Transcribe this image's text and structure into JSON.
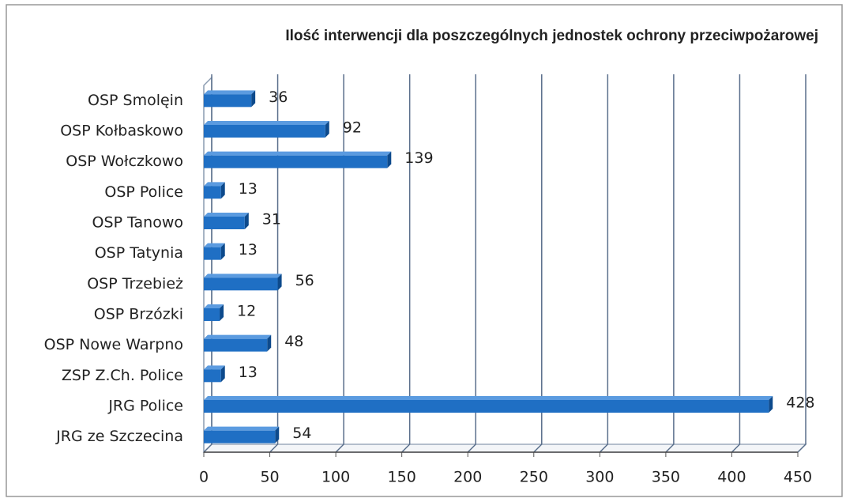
{
  "chart_data": {
    "type": "bar",
    "orientation": "horizontal",
    "title": "Ilość interwencji dla poszczególnych jednostek ochrony przeciwpożarowej",
    "categories": [
      "OSP Smolęin",
      "OSP Kołbaskowo",
      "OSP Wołczkowo",
      "OSP Police",
      "OSP Tanowo",
      "OSP Tatynia",
      "OSP Trzebież",
      "OSP Brzózki",
      "OSP Nowe Warpno",
      "ZSP Z.Ch. Police",
      "JRG Police",
      "JRG ze Szczecina"
    ],
    "values": [
      36,
      92,
      139,
      13,
      31,
      13,
      56,
      12,
      48,
      13,
      428,
      54
    ],
    "color": "#1f6fc4",
    "xlim": [
      0,
      450
    ],
    "xticks": [
      0,
      50,
      100,
      150,
      200,
      250,
      300,
      350,
      400,
      450
    ],
    "grid": true
  }
}
